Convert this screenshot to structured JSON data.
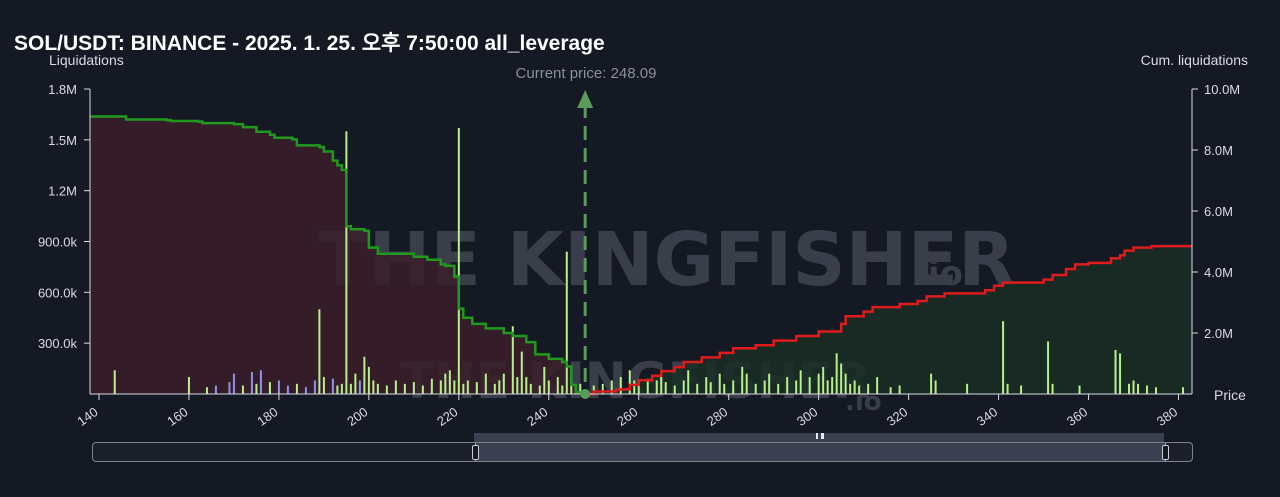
{
  "header": {
    "title": "SOL/USDT: BINANCE - 2025. 1. 25. 오후 7:50:00 all_leverage"
  },
  "watermark": {
    "brand": "THE KINGFISHER",
    "suffix": ".io"
  },
  "current_price_label": "Current price: 248.09",
  "colors": {
    "background": "#151924",
    "short_cum_line": "#1f9a1f",
    "long_cum_line": "#e01b1b",
    "short_fill": "#3a1f2a",
    "long_fill": "#1a2e26",
    "bar_green": "#b8ef8a",
    "bar_blue": "#8d92e8",
    "current_price_marker": "#5a9a5a"
  },
  "chart_data": {
    "type": "bar",
    "current_price": 248.09,
    "x_axis": {
      "label": "Price",
      "range": [
        138,
        383
      ],
      "ticks": [
        140,
        160,
        180,
        200,
        220,
        240,
        260,
        280,
        300,
        320,
        340,
        360,
        380
      ]
    },
    "y_left": {
      "label": "Liquidations",
      "range": [
        0,
        1800000
      ],
      "ticks": [
        "300.0k",
        "600.0k",
        "900.0k",
        "1.2M",
        "1.5M",
        "1.8M"
      ],
      "tick_values": [
        300000,
        600000,
        900000,
        1200000,
        1500000,
        1800000
      ]
    },
    "y_right": {
      "label": "Cum. liquidations",
      "range": [
        0,
        10000000
      ],
      "ticks": [
        "2.0M",
        "4.0M",
        "6.0M",
        "8.0M",
        "10.0M"
      ],
      "tick_values": [
        2000000,
        4000000,
        6000000,
        8000000,
        10000000
      ]
    },
    "series": [
      {
        "kind": "cumulative",
        "side": "below-price",
        "points": [
          [
            138,
            9.1
          ],
          [
            145,
            9.1
          ],
          [
            146,
            9.0
          ],
          [
            155,
            8.98
          ],
          [
            156,
            8.95
          ],
          [
            162,
            8.93
          ],
          [
            163,
            8.88
          ],
          [
            170,
            8.85
          ],
          [
            172,
            8.75
          ],
          [
            175,
            8.6
          ],
          [
            178,
            8.5
          ],
          [
            179,
            8.4
          ],
          [
            183,
            8.35
          ],
          [
            184,
            8.15
          ],
          [
            189,
            8.1
          ],
          [
            190,
            7.95
          ],
          [
            192,
            7.65
          ],
          [
            193,
            7.5
          ],
          [
            194,
            7.35
          ],
          [
            195,
            5.5
          ],
          [
            196,
            5.4
          ],
          [
            199,
            5.35
          ],
          [
            200,
            4.8
          ],
          [
            202,
            4.6
          ],
          [
            210,
            4.5
          ],
          [
            213,
            4.4
          ],
          [
            216,
            4.25
          ],
          [
            217,
            4.2
          ],
          [
            219,
            3.85
          ],
          [
            220,
            2.8
          ],
          [
            221,
            2.5
          ],
          [
            223,
            2.3
          ],
          [
            226,
            2.15
          ],
          [
            230,
            2.0
          ],
          [
            232,
            1.9
          ],
          [
            235,
            1.7
          ],
          [
            237,
            1.3
          ],
          [
            240,
            1.15
          ],
          [
            243,
            1.05
          ],
          [
            244,
            0.9
          ],
          [
            245,
            0.3
          ],
          [
            246,
            0.05
          ],
          [
            248.09,
            0.0
          ]
        ]
      },
      {
        "kind": "cumulative",
        "side": "above-price",
        "points": [
          [
            248.09,
            0.0
          ],
          [
            250,
            0.08
          ],
          [
            255,
            0.15
          ],
          [
            258,
            0.3
          ],
          [
            260,
            0.45
          ],
          [
            263,
            0.6
          ],
          [
            265,
            0.75
          ],
          [
            268,
            0.88
          ],
          [
            270,
            1.05
          ],
          [
            274,
            1.2
          ],
          [
            278,
            1.35
          ],
          [
            281,
            1.5
          ],
          [
            286,
            1.6
          ],
          [
            290,
            1.75
          ],
          [
            295,
            1.9
          ],
          [
            300,
            2.05
          ],
          [
            305,
            2.3
          ],
          [
            306,
            2.55
          ],
          [
            310,
            2.7
          ],
          [
            312,
            2.85
          ],
          [
            318,
            2.95
          ],
          [
            322,
            3.05
          ],
          [
            324,
            3.2
          ],
          [
            328,
            3.3
          ],
          [
            337,
            3.4
          ],
          [
            339,
            3.55
          ],
          [
            341,
            3.65
          ],
          [
            350,
            3.75
          ],
          [
            352,
            3.9
          ],
          [
            355,
            4.1
          ],
          [
            357,
            4.25
          ],
          [
            360,
            4.3
          ],
          [
            365,
            4.45
          ],
          [
            367,
            4.55
          ],
          [
            368,
            4.7
          ],
          [
            370,
            4.8
          ],
          [
            374,
            4.85
          ],
          [
            383,
            4.85
          ]
        ]
      },
      {
        "kind": "bars",
        "bars": [
          [
            143.5,
            0.14,
            "g"
          ],
          [
            160,
            0.1,
            "g"
          ],
          [
            164,
            0.04,
            "g"
          ],
          [
            166,
            0.05,
            "b"
          ],
          [
            169,
            0.07,
            "b"
          ],
          [
            170,
            0.12,
            "b"
          ],
          [
            172,
            0.05,
            "g"
          ],
          [
            174,
            0.13,
            "b"
          ],
          [
            175,
            0.06,
            "g"
          ],
          [
            176,
            0.14,
            "b"
          ],
          [
            178,
            0.07,
            "g"
          ],
          [
            180,
            0.08,
            "b"
          ],
          [
            182,
            0.05,
            "b"
          ],
          [
            184,
            0.06,
            "g"
          ],
          [
            186,
            0.04,
            "b"
          ],
          [
            188,
            0.08,
            "b"
          ],
          [
            189,
            0.5,
            "g"
          ],
          [
            190,
            0.1,
            "g"
          ],
          [
            192,
            0.09,
            "b"
          ],
          [
            193,
            0.05,
            "g"
          ],
          [
            194,
            0.06,
            "g"
          ],
          [
            195,
            1.55,
            "g"
          ],
          [
            196,
            0.06,
            "g"
          ],
          [
            197,
            0.12,
            "g"
          ],
          [
            198,
            0.08,
            "b"
          ],
          [
            199,
            0.22,
            "g"
          ],
          [
            200,
            0.16,
            "g"
          ],
          [
            201,
            0.08,
            "g"
          ],
          [
            202,
            0.06,
            "g"
          ],
          [
            204,
            0.05,
            "g"
          ],
          [
            206,
            0.08,
            "g"
          ],
          [
            208,
            0.06,
            "g"
          ],
          [
            210,
            0.07,
            "g"
          ],
          [
            212,
            0.05,
            "g"
          ],
          [
            214,
            0.09,
            "g"
          ],
          [
            216,
            0.08,
            "g"
          ],
          [
            217,
            0.12,
            "g"
          ],
          [
            218,
            0.14,
            "g"
          ],
          [
            219,
            0.08,
            "g"
          ],
          [
            220,
            1.57,
            "g"
          ],
          [
            221,
            0.06,
            "g"
          ],
          [
            222,
            0.08,
            "g"
          ],
          [
            224,
            0.07,
            "g"
          ],
          [
            226,
            0.12,
            "g"
          ],
          [
            228,
            0.06,
            "g"
          ],
          [
            229,
            0.08,
            "g"
          ],
          [
            230,
            0.12,
            "g"
          ],
          [
            232,
            0.4,
            "g"
          ],
          [
            233,
            0.1,
            "g"
          ],
          [
            234,
            0.25,
            "g"
          ],
          [
            235,
            0.1,
            "g"
          ],
          [
            236,
            0.06,
            "g"
          ],
          [
            238,
            0.05,
            "g"
          ],
          [
            239,
            0.16,
            "g"
          ],
          [
            240,
            0.08,
            "g"
          ],
          [
            242,
            0.1,
            "g"
          ],
          [
            243,
            0.05,
            "g"
          ],
          [
            244,
            0.84,
            "g"
          ],
          [
            245,
            0.08,
            "g"
          ],
          [
            246,
            0.05,
            "g"
          ],
          [
            247,
            0.06,
            "g"
          ],
          [
            250,
            0.05,
            "g"
          ],
          [
            252,
            0.06,
            "g"
          ],
          [
            254,
            0.08,
            "g"
          ],
          [
            256,
            0.1,
            "g"
          ],
          [
            258,
            0.14,
            "g"
          ],
          [
            259,
            0.08,
            "g"
          ],
          [
            260,
            0.06,
            "g"
          ],
          [
            262,
            0.09,
            "g"
          ],
          [
            264,
            0.08,
            "g"
          ],
          [
            265,
            0.12,
            "g"
          ],
          [
            266,
            0.07,
            "g"
          ],
          [
            268,
            0.05,
            "g"
          ],
          [
            270,
            0.08,
            "g"
          ],
          [
            271,
            0.14,
            "g"
          ],
          [
            273,
            0.06,
            "g"
          ],
          [
            275,
            0.1,
            "g"
          ],
          [
            276,
            0.07,
            "g"
          ],
          [
            278,
            0.12,
            "g"
          ],
          [
            279,
            0.06,
            "g"
          ],
          [
            281,
            0.08,
            "g"
          ],
          [
            283,
            0.16,
            "g"
          ],
          [
            284,
            0.12,
            "g"
          ],
          [
            286,
            0.06,
            "g"
          ],
          [
            288,
            0.08,
            "g"
          ],
          [
            289,
            0.12,
            "g"
          ],
          [
            291,
            0.06,
            "g"
          ],
          [
            293,
            0.1,
            "g"
          ],
          [
            295,
            0.08,
            "g"
          ],
          [
            296,
            0.14,
            "g"
          ],
          [
            298,
            0.1,
            "g"
          ],
          [
            300,
            0.12,
            "g"
          ],
          [
            301,
            0.16,
            "g"
          ],
          [
            302,
            0.08,
            "g"
          ],
          [
            303,
            0.1,
            "g"
          ],
          [
            304,
            0.24,
            "g"
          ],
          [
            305,
            0.18,
            "g"
          ],
          [
            306,
            0.12,
            "g"
          ],
          [
            307,
            0.06,
            "g"
          ],
          [
            308,
            0.08,
            "g"
          ],
          [
            309,
            0.05,
            "g"
          ],
          [
            311,
            0.06,
            "g"
          ],
          [
            313,
            0.1,
            "g"
          ],
          [
            316,
            0.04,
            "g"
          ],
          [
            318,
            0.05,
            "g"
          ],
          [
            325,
            0.12,
            "g"
          ],
          [
            326,
            0.08,
            "g"
          ],
          [
            333,
            0.06,
            "g"
          ],
          [
            341,
            0.43,
            "g"
          ],
          [
            342,
            0.06,
            "g"
          ],
          [
            345,
            0.05,
            "g"
          ],
          [
            351,
            0.31,
            "g"
          ],
          [
            352,
            0.06,
            "g"
          ],
          [
            358,
            0.05,
            "g"
          ],
          [
            366,
            0.26,
            "g"
          ],
          [
            367,
            0.24,
            "g"
          ],
          [
            369,
            0.06,
            "g"
          ],
          [
            370,
            0.08,
            "g"
          ],
          [
            371,
            0.06,
            "g"
          ],
          [
            373,
            0.05,
            "g"
          ],
          [
            375,
            0.04,
            "g"
          ],
          [
            381,
            0.04,
            "g"
          ]
        ]
      }
    ]
  }
}
